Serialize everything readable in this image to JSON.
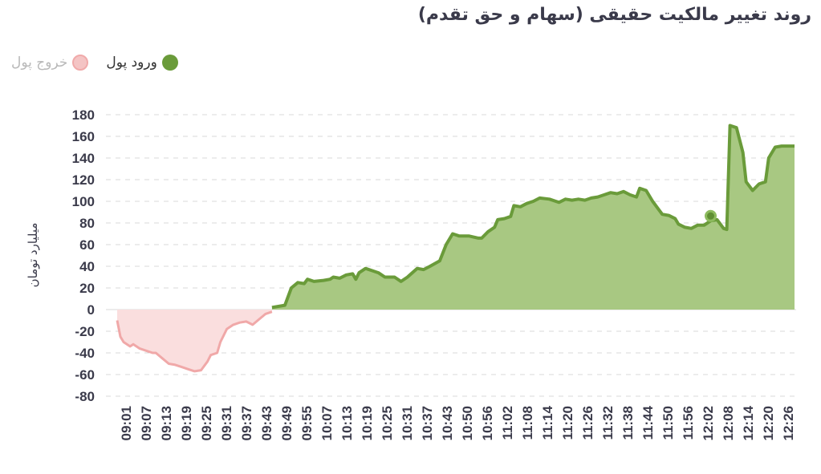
{
  "chart_data": {
    "type": "area",
    "title": "روند تغییر مالکیت حقیقی (سهام و حق تقدم)",
    "ylabel": "میلیارد تومان",
    "ylim": [
      -80,
      180
    ],
    "yticks": [
      180,
      160,
      140,
      120,
      100,
      80,
      60,
      40,
      20,
      0,
      -20,
      -40,
      -60,
      -80
    ],
    "xlim": [
      "09:01",
      "12:31"
    ],
    "x_tick_labels": [
      "09:01",
      "09:07",
      "09:13",
      "09:19",
      "09:25",
      "09:31",
      "09:37",
      "09:43",
      "09:49",
      "09:55",
      "10:07",
      "10:13",
      "10:19",
      "10:25",
      "10:31",
      "10:37",
      "10:43",
      "10:50",
      "10:56",
      "11:02",
      "11:08",
      "11:14",
      "11:20",
      "11:26",
      "11:32",
      "11:38",
      "11:44",
      "11:50",
      "11:56",
      "12:02",
      "12:08",
      "12:14",
      "12:20",
      "12:26"
    ],
    "grid": true,
    "legend_position": "top-left",
    "series": [
      {
        "name": "ورود پول",
        "color": "#6a9b3a",
        "fill": "#a8c882",
        "points": [
          [
            "09:49",
            2
          ],
          [
            "09:53",
            4
          ],
          [
            "09:55",
            20
          ],
          [
            "09:57",
            25
          ],
          [
            "09:59",
            24
          ],
          [
            "10:00",
            28
          ],
          [
            "10:02",
            26
          ],
          [
            "10:05",
            27
          ],
          [
            "10:07",
            28
          ],
          [
            "10:08",
            30
          ],
          [
            "10:10",
            29
          ],
          [
            "10:12",
            32
          ],
          [
            "10:14",
            33
          ],
          [
            "10:15",
            28
          ],
          [
            "10:16",
            34
          ],
          [
            "10:18",
            38
          ],
          [
            "10:20",
            36
          ],
          [
            "10:22",
            34
          ],
          [
            "10:24",
            30
          ],
          [
            "10:27",
            30
          ],
          [
            "10:29",
            26
          ],
          [
            "10:31",
            30
          ],
          [
            "10:34",
            38
          ],
          [
            "10:36",
            37
          ],
          [
            "10:38",
            40
          ],
          [
            "10:41",
            45
          ],
          [
            "10:43",
            60
          ],
          [
            "10:45",
            70
          ],
          [
            "10:47",
            68
          ],
          [
            "10:50",
            68
          ],
          [
            "10:53",
            66
          ],
          [
            "10:54",
            66
          ],
          [
            "10:56",
            72
          ],
          [
            "10:58",
            76
          ],
          [
            "10:59",
            83
          ],
          [
            "11:01",
            84
          ],
          [
            "11:03",
            86
          ],
          [
            "11:04",
            96
          ],
          [
            "11:06",
            95
          ],
          [
            "11:08",
            98
          ],
          [
            "11:10",
            100
          ],
          [
            "11:12",
            103
          ],
          [
            "11:15",
            102
          ],
          [
            "11:17",
            100
          ],
          [
            "11:18",
            99
          ],
          [
            "11:20",
            102
          ],
          [
            "11:22",
            101
          ],
          [
            "11:24",
            102
          ],
          [
            "11:26",
            101
          ],
          [
            "11:28",
            103
          ],
          [
            "11:30",
            104
          ],
          [
            "11:32",
            106
          ],
          [
            "11:34",
            108
          ],
          [
            "11:36",
            107
          ],
          [
            "11:38",
            109
          ],
          [
            "11:40",
            106
          ],
          [
            "11:42",
            104
          ],
          [
            "11:43",
            112
          ],
          [
            "11:45",
            110
          ],
          [
            "11:47",
            100
          ],
          [
            "11:49",
            92
          ],
          [
            "11:50",
            88
          ],
          [
            "11:52",
            87
          ],
          [
            "11:54",
            84
          ],
          [
            "11:55",
            79
          ],
          [
            "11:57",
            76
          ],
          [
            "11:59",
            75
          ],
          [
            "12:01",
            78
          ],
          [
            "12:03",
            78
          ],
          [
            "12:05",
            82
          ],
          [
            "12:07",
            83
          ],
          [
            "12:09",
            75
          ],
          [
            "12:10",
            74
          ],
          [
            "12:11",
            170
          ],
          [
            "12:13",
            168
          ],
          [
            "12:15",
            145
          ],
          [
            "12:16",
            118
          ],
          [
            "12:18",
            110
          ],
          [
            "12:20",
            116
          ],
          [
            "12:22",
            118
          ],
          [
            "12:23",
            140
          ],
          [
            "12:25",
            150
          ],
          [
            "12:27",
            151
          ],
          [
            "12:31",
            151
          ]
        ]
      },
      {
        "name": "خروج پول",
        "color": "#f0a8a8",
        "fill": "#fadede",
        "points": [
          [
            "09:01",
            -10
          ],
          [
            "09:02",
            -25
          ],
          [
            "09:03",
            -30
          ],
          [
            "09:05",
            -34
          ],
          [
            "09:06",
            -32
          ],
          [
            "09:08",
            -36
          ],
          [
            "09:10",
            -38
          ],
          [
            "09:12",
            -40
          ],
          [
            "09:13",
            -40
          ],
          [
            "09:15",
            -45
          ],
          [
            "09:17",
            -50
          ],
          [
            "09:19",
            -51
          ],
          [
            "09:21",
            -53
          ],
          [
            "09:23",
            -55
          ],
          [
            "09:25",
            -57
          ],
          [
            "09:27",
            -56
          ],
          [
            "09:29",
            -48
          ],
          [
            "09:30",
            -42
          ],
          [
            "09:32",
            -40
          ],
          [
            "09:33",
            -30
          ],
          [
            "09:35",
            -18
          ],
          [
            "09:37",
            -14
          ],
          [
            "09:39",
            -12
          ],
          [
            "09:41",
            -11
          ],
          [
            "09:43",
            -14
          ],
          [
            "09:45",
            -9
          ],
          [
            "09:47",
            -4
          ],
          [
            "09:49",
            -2
          ]
        ]
      }
    ]
  },
  "legend": {
    "items": [
      {
        "label": "ورود پول",
        "color": "#6a9b3a"
      },
      {
        "label": "خروج پول",
        "color": "#f4c4c4"
      }
    ]
  }
}
